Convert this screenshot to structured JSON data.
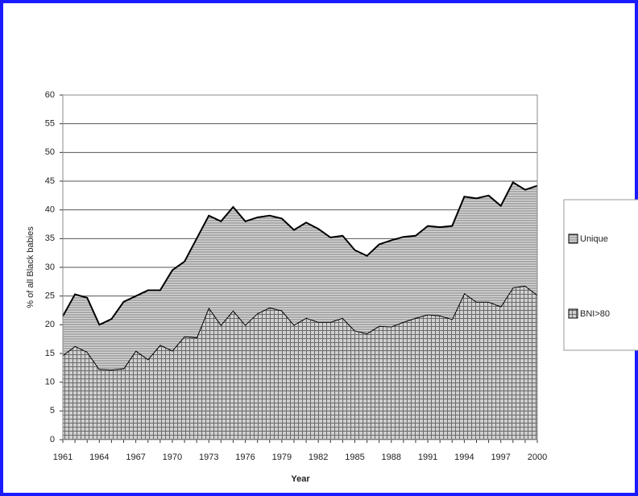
{
  "chart_data": {
    "type": "area",
    "y_label": "% of all Black babies",
    "x_label": "Year",
    "categories": [
      "1961",
      null,
      null,
      "1964",
      null,
      null,
      "1967",
      null,
      null,
      "1970",
      null,
      null,
      "1973",
      null,
      null,
      "1976",
      null,
      null,
      "1979",
      null,
      null,
      "1982",
      null,
      null,
      "1985",
      null,
      null,
      "1988",
      null,
      null,
      "1991",
      null,
      null,
      "1994",
      null,
      null,
      "1997",
      null,
      null,
      "2000"
    ],
    "series": [
      {
        "name": "Unique",
        "color": "#7a7a7a",
        "pattern": "horizontal",
        "values": [
          6.8,
          9.0,
          9.4,
          7.7,
          8.8,
          11.6,
          9.5,
          12.0,
          9.5,
          14.0,
          13.0,
          17.2,
          16.0,
          18.0,
          18.0,
          18.0,
          16.7,
          16.0,
          16.0,
          16.5,
          16.6,
          16.2,
          14.7,
          14.3,
          14.0,
          13.5,
          14.2,
          15.0,
          14.8,
          14.3,
          15.4,
          15.4,
          16.2,
          16.8,
          18.0,
          18.5,
          17.5,
          18.3,
          16.7,
          19.0
        ]
      },
      {
        "name": "BNI>80",
        "color": "#6a6a6a",
        "pattern": "grid",
        "values": [
          14.7,
          16.3,
          15.3,
          12.3,
          12.2,
          12.4,
          15.5,
          14.0,
          16.5,
          15.5,
          18.0,
          17.8,
          23.0,
          20.0,
          22.5,
          20.0,
          22.0,
          23.0,
          22.5,
          20.0,
          21.2,
          20.5,
          20.5,
          21.2,
          19.0,
          18.5,
          19.8,
          19.7,
          20.5,
          21.2,
          21.8,
          21.6,
          21.0,
          25.5,
          24.0,
          24.0,
          23.2,
          26.5,
          26.8,
          25.2
        ]
      }
    ],
    "ylim": [
      0,
      60
    ],
    "yticks": [
      0,
      5,
      10,
      15,
      20,
      25,
      30,
      35,
      40,
      45,
      50,
      55,
      60
    ],
    "grid": true,
    "legend": "right"
  }
}
